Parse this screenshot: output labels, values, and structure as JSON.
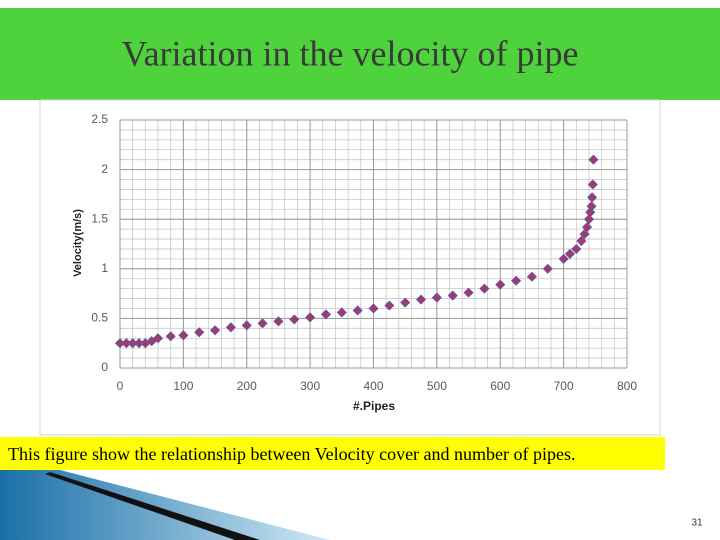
{
  "slide": {
    "title": "Variation in the velocity of pipe",
    "caption": "This figure show the  relationship between Velocity cover  and number of pipes.",
    "page_number": "31"
  },
  "chart_data": {
    "type": "scatter",
    "x_label": "#.Pipes",
    "y_label": "Velocity(m/s)",
    "series": [
      {
        "name": "Velocity",
        "color": "#a23a6a",
        "x": [
          0,
          10,
          20,
          30,
          40,
          50,
          60,
          80,
          100,
          125,
          150,
          175,
          200,
          225,
          250,
          275,
          300,
          325,
          350,
          375,
          400,
          425,
          450,
          475,
          500,
          525,
          550,
          575,
          600,
          625,
          650,
          675,
          700,
          710,
          720,
          728,
          733,
          737,
          740,
          742,
          744,
          745,
          746,
          747
        ],
        "values": [
          0.25,
          0.25,
          0.25,
          0.25,
          0.25,
          0.27,
          0.3,
          0.32,
          0.33,
          0.36,
          0.38,
          0.41,
          0.43,
          0.45,
          0.47,
          0.49,
          0.51,
          0.54,
          0.56,
          0.58,
          0.6,
          0.63,
          0.66,
          0.69,
          0.71,
          0.73,
          0.76,
          0.8,
          0.84,
          0.88,
          0.92,
          1.0,
          1.1,
          1.15,
          1.2,
          1.28,
          1.35,
          1.42,
          1.5,
          1.57,
          1.63,
          1.72,
          1.85,
          2.1
        ]
      }
    ],
    "xlim": [
      0,
      800
    ],
    "xticks": [
      0,
      100,
      200,
      300,
      400,
      500,
      600,
      700,
      800
    ],
    "ylim": [
      0,
      2.5
    ],
    "yticks": [
      0,
      0.5,
      1,
      1.5,
      2,
      2.5
    ],
    "grid": true,
    "minor_step": {
      "x": 20,
      "y": 0.1
    }
  }
}
